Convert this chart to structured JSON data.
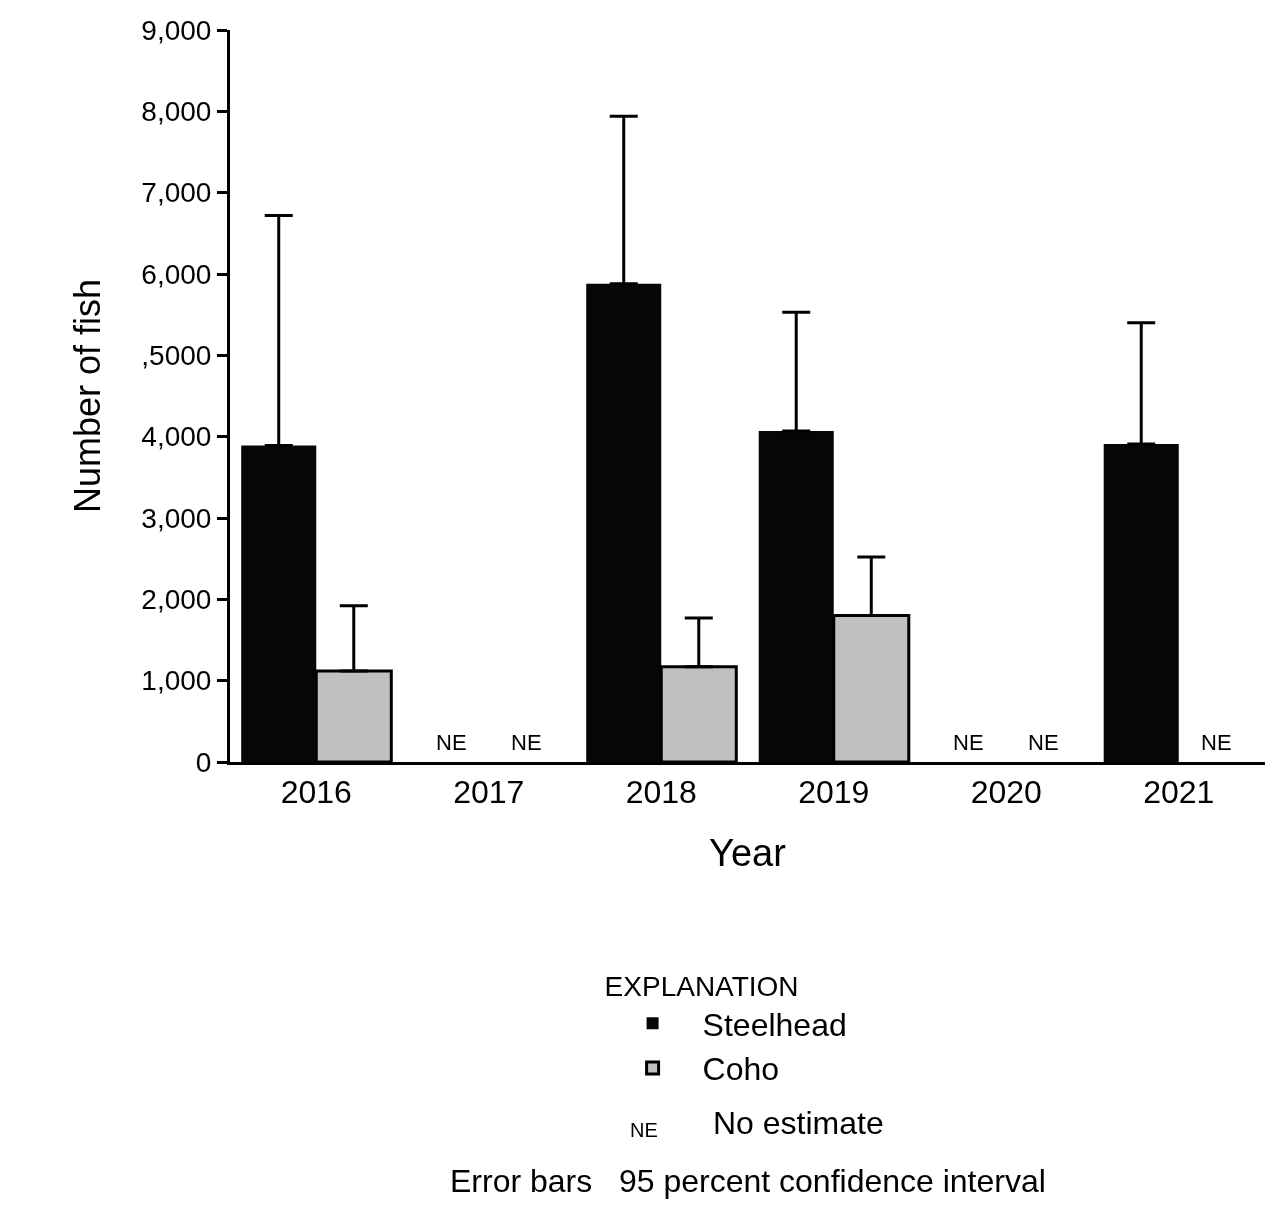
{
  "chart_data": {
    "type": "bar",
    "xlabel": "Year",
    "ylabel": "Number of fish",
    "legend_title": "EXPLANATION",
    "categories": [
      "2016",
      "2017",
      "2018",
      "2019",
      "2020",
      "2021"
    ],
    "series": [
      {
        "name": "Steelhead",
        "color": "#060604",
        "values": [
          3890,
          null,
          5880,
          4070,
          null,
          3910
        ],
        "errors": [
          [
            3890,
            6720
          ],
          null,
          [
            5880,
            7940
          ],
          [
            4070,
            5530
          ],
          null,
          [
            3910,
            5400
          ]
        ],
        "value_labels": [
          null,
          "NE",
          null,
          null,
          "NE",
          null
        ]
      },
      {
        "name": "Coho",
        "color": "#c0c0c0",
        "values": [
          1120,
          null,
          1170,
          1800,
          null,
          null
        ],
        "errors": [
          [
            1120,
            1920
          ],
          null,
          [
            1170,
            1770
          ],
          [
            1800,
            2520
          ],
          null,
          null
        ],
        "value_labels": [
          null,
          "NE",
          null,
          null,
          "NE",
          "NE"
        ]
      }
    ],
    "ylim": [
      0,
      9000
    ],
    "yticks": [
      0,
      {
        "value": 1000,
        "label": "1,000"
      },
      {
        "value": 2000,
        "label": "2,000"
      },
      {
        "value": 3000,
        "label": "3,000"
      },
      {
        "value": 4000,
        "label": "4,000"
      },
      {
        "value": 5000,
        "label": ",5000"
      },
      {
        "value": 6000,
        "label": "6,000"
      },
      {
        "value": 7000,
        "label": "7,000"
      },
      {
        "value": 8000,
        "label": "8,000"
      },
      {
        "value": 9000,
        "label": "9,000"
      }
    ],
    "legend": "bottom",
    "annotations": [
      "NE",
      "No estimate",
      "Error bars   95 percent confidence interval"
    ]
  }
}
